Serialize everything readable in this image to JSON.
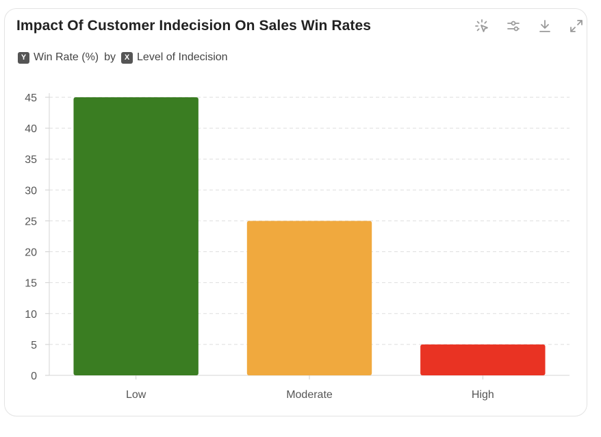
{
  "header": {
    "title": "Impact Of Customer Indecision On Sales Win Rates",
    "y_badge": "Y",
    "y_label": "Win Rate (%)",
    "by_text": "by",
    "x_badge": "X",
    "x_label": "Level of Indecision"
  },
  "toolbar": {
    "icons": [
      "select-cursor-icon",
      "sliders-icon",
      "download-icon",
      "expand-icon"
    ]
  },
  "chart_data": {
    "type": "bar",
    "categories": [
      "Low",
      "Moderate",
      "High"
    ],
    "values": [
      45,
      25,
      5
    ],
    "colors": [
      "#3a7d22",
      "#f0a93e",
      "#e93323"
    ],
    "xlabel": "Level of Indecision",
    "ylabel": "Win Rate (%)",
    "ylim": [
      0,
      45
    ],
    "yticks": [
      0,
      5,
      10,
      15,
      20,
      25,
      30,
      35,
      40,
      45
    ],
    "grid": true
  }
}
